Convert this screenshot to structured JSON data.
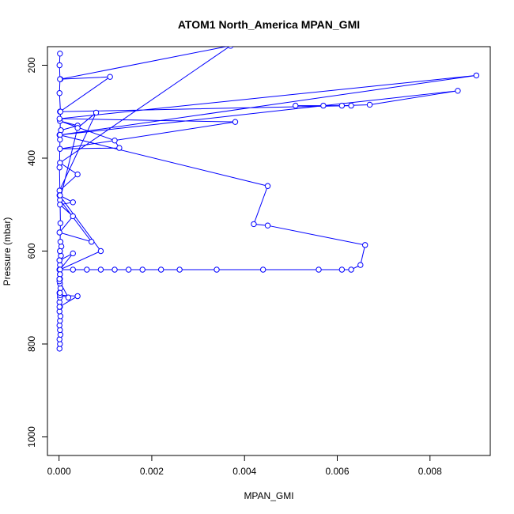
{
  "chart_data": {
    "type": "line",
    "title": "ATOM1 North_America MPAN_GMI",
    "xlabel": "MPAN_GMI",
    "ylabel": "Pressure (mbar)",
    "xlim": [
      -0.00025,
      0.0093
    ],
    "ylim": [
      1040,
      160
    ],
    "y_reversed": true,
    "grid": false,
    "xticks": [
      0,
      0.002,
      0.004,
      0.006,
      0.008
    ],
    "xtick_labels": [
      "0.000",
      "0.002",
      "0.004",
      "0.006",
      "0.008"
    ],
    "yticks": [
      200,
      400,
      600,
      800,
      1000
    ],
    "ytick_labels": [
      "200",
      "400",
      "600",
      "800",
      "1000"
    ],
    "series": [
      {
        "color": "#0000ff",
        "x": [
          1e-05,
          2e-05,
          1e-05,
          3e-05,
          2e-05,
          1e-05,
          2e-05,
          3e-05,
          1e-05,
          2e-05,
          1e-05,
          2e-05,
          1e-05,
          3e-05,
          2e-05,
          1e-05,
          2e-05,
          1e-05,
          2e-05,
          1e-05,
          4e-05,
          2e-05,
          5e-05,
          3e-05,
          2e-05,
          1e-05,
          0.0003,
          0.0006,
          0.0009,
          0.0012,
          0.0015,
          0.0018,
          0.0022,
          0.0026,
          0.0034,
          0.0044,
          0.0056,
          0.0061,
          0.0063,
          0.0065,
          0.0066,
          0.0045,
          0.0042,
          0.0045,
          1e-05,
          4e-05,
          0.0004,
          2e-05,
          0.0012,
          0.0013,
          2e-05,
          0.0038,
          1e-05,
          0.009,
          2e-05,
          0.0086,
          0.0067,
          0.0061,
          0.0057,
          0.0051,
          0.0063,
          2e-05,
          0.0011,
          3e-05,
          0.0037,
          2e-05,
          0.0004,
          1e-05,
          0.0008,
          0.0004,
          2e-05,
          0.0007,
          1e-05,
          0.0003,
          2e-05,
          0.0003,
          1e-05,
          0.0009,
          2e-05,
          0.0003,
          1e-05,
          2e-05,
          1e-05,
          0.0002,
          2e-05,
          0.0004,
          1e-05,
          2e-05,
          1e-05,
          2e-05,
          3e-05,
          2e-05,
          1e-05,
          2e-05,
          3e-05,
          1e-05,
          2e-05,
          1e-05,
          2e-05
        ],
        "y": [
          810,
          800,
          790,
          780,
          770,
          760,
          750,
          740,
          730,
          720,
          710,
          700,
          690,
          680,
          670,
          660,
          650,
          640,
          630,
          620,
          610,
          600,
          590,
          580,
          660,
          640,
          640,
          640,
          640,
          640,
          640,
          640,
          640,
          640,
          640,
          640,
          640,
          640,
          640,
          630,
          587,
          545,
          542,
          460,
          350,
          340,
          330,
          320,
          362,
          378,
          380,
          322,
          315,
          222,
          350,
          255,
          285,
          287,
          287,
          287,
          287,
          300,
          225,
          230,
          158,
          410,
          435,
          470,
          302,
          335,
          490,
          580,
          560,
          525,
          500,
          495,
          480,
          600,
          640,
          605,
          620,
          650,
          665,
          700,
          695,
          697,
          720,
          690,
          660,
          600,
          540,
          480,
          420,
          360,
          300,
          260,
          230,
          200,
          175
        ]
      }
    ]
  }
}
